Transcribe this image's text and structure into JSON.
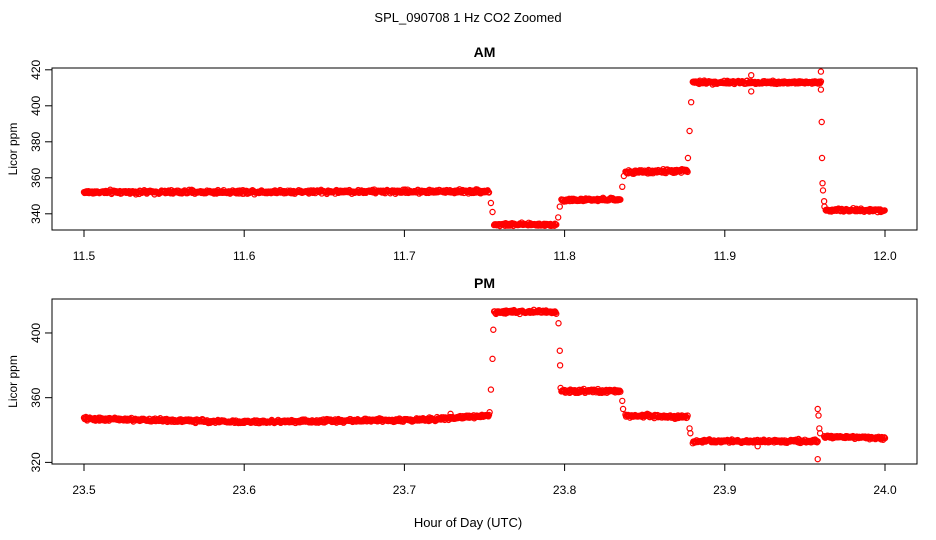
{
  "title": "SPL_090708  1 Hz CO2 Zoomed",
  "xlabel": "Hour of Day (UTC)",
  "chart_data": [
    {
      "type": "scatter",
      "title": "AM",
      "ylabel": "Licor ppm",
      "xlim": [
        11.5,
        12.0
      ],
      "ylim": [
        331,
        421
      ],
      "x_ticks": [
        11.5,
        11.6,
        11.7,
        11.8,
        11.9,
        12.0
      ],
      "x_tick_labels": [
        "11.5",
        "11.6",
        "11.7",
        "11.8",
        "11.9",
        "12.0"
      ],
      "y_ticks": [
        340,
        360,
        380,
        400,
        420
      ],
      "y_tick_labels": [
        "340",
        "360",
        "380",
        "400",
        "420"
      ],
      "marker": "open-circle",
      "color": "#ff0000",
      "grid": false,
      "segments": [
        {
          "x": [
            11.5,
            11.753
          ],
          "y": [
            352,
            352.5
          ],
          "noise": 1.0
        },
        {
          "x": [
            11.756,
            11.795
          ],
          "y": [
            334,
            334
          ],
          "noise": 0.8
        },
        {
          "x": [
            11.798,
            11.835
          ],
          "y": [
            347.5,
            348
          ],
          "noise": 0.8
        },
        {
          "x": [
            11.838,
            11.877
          ],
          "y": [
            363,
            364
          ],
          "noise": 1.0
        },
        {
          "x": [
            11.88,
            11.96
          ],
          "y": [
            413,
            413
          ],
          "noise": 0.9
        },
        {
          "x": [
            11.963,
            12.0
          ],
          "y": [
            342,
            342
          ],
          "noise": 0.9
        }
      ],
      "transition_points": [
        {
          "x": 11.754,
          "y": 346
        },
        {
          "x": 11.755,
          "y": 341
        },
        {
          "x": 11.796,
          "y": 338
        },
        {
          "x": 11.797,
          "y": 344
        },
        {
          "x": 11.836,
          "y": 355
        },
        {
          "x": 11.837,
          "y": 361
        },
        {
          "x": 11.877,
          "y": 371
        },
        {
          "x": 11.878,
          "y": 386
        },
        {
          "x": 11.879,
          "y": 402
        },
        {
          "x": 11.9165,
          "y": 417
        },
        {
          "x": 11.9165,
          "y": 408
        },
        {
          "x": 11.96,
          "y": 419
        },
        {
          "x": 11.96,
          "y": 409
        },
        {
          "x": 11.9605,
          "y": 391
        },
        {
          "x": 11.9607,
          "y": 371
        },
        {
          "x": 11.961,
          "y": 357
        },
        {
          "x": 11.9613,
          "y": 353
        },
        {
          "x": 11.962,
          "y": 347
        },
        {
          "x": 11.9622,
          "y": 344
        }
      ]
    },
    {
      "type": "scatter",
      "title": "PM",
      "ylabel": "Licor ppm",
      "xlim": [
        23.5,
        24.0
      ],
      "ylim": [
        319,
        421
      ],
      "x_ticks": [
        23.5,
        23.6,
        23.7,
        23.8,
        23.9,
        24.0
      ],
      "x_tick_labels": [
        "23.5",
        "23.6",
        "23.7",
        "23.8",
        "23.9",
        "24.0"
      ],
      "y_ticks": [
        320,
        360,
        400
      ],
      "y_tick_labels": [
        "320",
        "360",
        "400"
      ],
      "marker": "open-circle",
      "color": "#ff0000",
      "grid": false,
      "segments": [
        {
          "x": [
            23.5,
            23.6
          ],
          "y": [
            347,
            345
          ],
          "noise": 1.0
        },
        {
          "x": [
            23.6,
            23.72
          ],
          "y": [
            345,
            346.5
          ],
          "noise": 1.0
        },
        {
          "x": [
            23.72,
            23.753
          ],
          "y": [
            347,
            349
          ],
          "noise": 1.0
        },
        {
          "x": [
            23.756,
            23.795
          ],
          "y": [
            413,
            413
          ],
          "noise": 1.0
        },
        {
          "x": [
            23.798,
            23.835
          ],
          "y": [
            364,
            364
          ],
          "noise": 1.0
        },
        {
          "x": [
            23.838,
            23.877
          ],
          "y": [
            349,
            348
          ],
          "noise": 1.0
        },
        {
          "x": [
            23.88,
            23.958
          ],
          "y": [
            333,
            333
          ],
          "noise": 1.0
        },
        {
          "x": [
            23.962,
            24.0
          ],
          "y": [
            336,
            335
          ],
          "noise": 0.9
        }
      ],
      "transition_points": [
        {
          "x": 23.7288,
          "y": 350
        },
        {
          "x": 23.7532,
          "y": 351
        },
        {
          "x": 23.754,
          "y": 365
        },
        {
          "x": 23.755,
          "y": 384
        },
        {
          "x": 23.7555,
          "y": 402
        },
        {
          "x": 23.7962,
          "y": 406
        },
        {
          "x": 23.797,
          "y": 389
        },
        {
          "x": 23.7972,
          "y": 380
        },
        {
          "x": 23.7975,
          "y": 366
        },
        {
          "x": 23.836,
          "y": 358
        },
        {
          "x": 23.8365,
          "y": 353
        },
        {
          "x": 23.878,
          "y": 341
        },
        {
          "x": 23.8785,
          "y": 338
        },
        {
          "x": 23.9205,
          "y": 330
        },
        {
          "x": 23.958,
          "y": 353
        },
        {
          "x": 23.9585,
          "y": 349
        },
        {
          "x": 23.958,
          "y": 322
        },
        {
          "x": 23.959,
          "y": 341
        },
        {
          "x": 23.9595,
          "y": 338
        }
      ]
    }
  ]
}
